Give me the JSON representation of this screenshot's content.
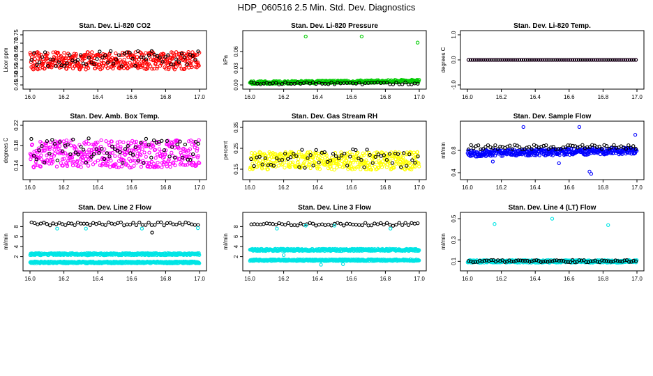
{
  "figure": {
    "title": "HDP_060516  2.5 Min. Std. Dev. Diagnostics"
  },
  "chart_data": [
    {
      "type": "scatter",
      "title": "Stan. Dev. Li-820 CO2",
      "ylabel": "Licor ppm",
      "xlim": [
        16.0,
        17.0
      ],
      "ylim": [
        0.45,
        0.75
      ],
      "xticks": [
        "16.0",
        "16.2",
        "16.4",
        "16.6",
        "16.8",
        "17.0"
      ],
      "yticks": [
        "0.45",
        "0.50",
        "0.55",
        "0.60",
        "0.65",
        "0.70",
        "0.75"
      ],
      "series": [
        {
          "name": "primary",
          "color": "#ff0000",
          "n": 420,
          "base": 0.595,
          "spread": 0.105,
          "noise": "band",
          "seed": 11
        },
        {
          "name": "black",
          "color": "#000000",
          "n": 62,
          "base": 0.61,
          "spread": 0.1,
          "noise": "band",
          "seed": 12
        }
      ]
    },
    {
      "type": "scatter",
      "title": "Stan. Dev. Li-820 Pressure",
      "ylabel": "kPa",
      "xlim": [
        16.0,
        17.0
      ],
      "ylim": [
        0.0,
        0.09
      ],
      "xticks": [
        "16.0",
        "16.2",
        "16.4",
        "16.6",
        "16.8",
        "17.0"
      ],
      "yticks": [
        "0.00",
        "0.03",
        "0.06"
      ],
      "series": [
        {
          "name": "primary",
          "color": "#00cc00",
          "n": 420,
          "base": 0.0015,
          "spread": 0.005,
          "noise": "low",
          "seed": 21,
          "trend": 0.003
        },
        {
          "name": "black",
          "color": "#000000",
          "n": 55,
          "base": 0.001,
          "spread": 0.004,
          "noise": "low",
          "seed": 22
        }
      ],
      "outliers": [
        {
          "color": "#00cc00",
          "x": 16.33,
          "y": 0.087
        },
        {
          "color": "#00cc00",
          "x": 16.66,
          "y": 0.087
        },
        {
          "color": "#00cc00",
          "x": 16.99,
          "y": 0.076
        }
      ]
    },
    {
      "type": "scatter",
      "title": "Stan. Dev. Li-820 Temp.",
      "ylabel": "degrees C",
      "xlim": [
        16.0,
        17.0
      ],
      "ylim": [
        -1.0,
        1.0
      ],
      "xticks": [
        "16.0",
        "16.2",
        "16.4",
        "16.6",
        "16.8",
        "17.0"
      ],
      "yticks": [
        "-1.0",
        "0.0",
        "1.0"
      ],
      "series": [
        {
          "name": "primary",
          "color": "#ff00ff",
          "n": 80,
          "base": 0.0,
          "spread": 0.0,
          "noise": "flat",
          "seed": 31
        },
        {
          "name": "black",
          "color": "#000000",
          "n": 80,
          "base": 0.0,
          "spread": 0.0,
          "noise": "flat",
          "seed": 32
        }
      ]
    },
    {
      "type": "scatter",
      "title": "Stan. Dev. Amb. Box Temp.",
      "ylabel": "degrees C",
      "xlim": [
        16.0,
        17.0
      ],
      "ylim": [
        0.12,
        0.22
      ],
      "xticks": [
        "16.0",
        "16.2",
        "16.4",
        "16.6",
        "16.8",
        "17.0"
      ],
      "yticks": [
        "0.14",
        "0.18",
        "0.22"
      ],
      "series": [
        {
          "name": "primary",
          "color": "#ff00ff",
          "n": 420,
          "base": 0.163,
          "spread": 0.055,
          "noise": "band",
          "seed": 41
        },
        {
          "name": "black",
          "color": "#000000",
          "n": 65,
          "base": 0.17,
          "spread": 0.05,
          "noise": "band",
          "seed": 42
        }
      ]
    },
    {
      "type": "scatter",
      "title": "Stan. Dev. Gas Stream RH",
      "ylabel": "percent",
      "xlim": [
        16.0,
        17.0
      ],
      "ylim": [
        0.12,
        0.36
      ],
      "xticks": [
        "16.0",
        "16.2",
        "16.4",
        "16.6",
        "16.8",
        "17.0"
      ],
      "yticks": [
        "0.15",
        "0.25",
        "0.35"
      ],
      "series": [
        {
          "name": "primary",
          "color": "#ffff00",
          "n": 420,
          "base": 0.19,
          "spread": 0.085,
          "noise": "band",
          "seed": 51
        },
        {
          "name": "black",
          "color": "#000000",
          "n": 60,
          "base": 0.2,
          "spread": 0.09,
          "noise": "band",
          "seed": 52
        }
      ]
    },
    {
      "type": "scatter",
      "title": "Stan. Dev. Sample Flow",
      "ylabel": "ml/min",
      "xlim": [
        16.0,
        17.0
      ],
      "ylim": [
        0.35,
        1.25
      ],
      "xticks": [
        "16.0",
        "16.2",
        "16.4",
        "16.6",
        "16.8",
        "17.0"
      ],
      "yticks": [
        "0.4",
        "0.8"
      ],
      "series": [
        {
          "name": "primary",
          "color": "#0000ff",
          "n": 420,
          "base": 0.77,
          "spread": 0.12,
          "noise": "band",
          "seed": 61,
          "trend": 0.05
        },
        {
          "name": "black",
          "color": "#000000",
          "n": 70,
          "base": 0.86,
          "spread": 0.08,
          "noise": "band",
          "seed": 62
        }
      ],
      "outliers": [
        {
          "color": "#0000ff",
          "x": 16.33,
          "y": 1.22
        },
        {
          "color": "#0000ff",
          "x": 16.66,
          "y": 1.22
        },
        {
          "color": "#0000ff",
          "x": 16.99,
          "y": 1.08
        },
        {
          "color": "#0000ff",
          "x": 16.72,
          "y": 0.42
        },
        {
          "color": "#0000ff",
          "x": 16.73,
          "y": 0.38
        },
        {
          "color": "#0000ff",
          "x": 16.15,
          "y": 0.6
        },
        {
          "color": "#0000ff",
          "x": 16.54,
          "y": 0.57
        }
      ]
    },
    {
      "type": "scatter",
      "title": "Stan. Dev. Line 2 Flow",
      "ylabel": "ml/min",
      "xlim": [
        16.0,
        17.0
      ],
      "ylim": [
        0.0,
        10.0
      ],
      "xticks": [
        "16.0",
        "16.2",
        "16.4",
        "16.6",
        "16.8",
        "17.0"
      ],
      "yticks": [
        "2",
        "4",
        "6",
        "8"
      ],
      "series": [
        {
          "name": "cyan upper",
          "color": "#00e5e5",
          "n": 420,
          "base": 2.5,
          "spread": 0.45,
          "noise": "band",
          "seed": 71
        },
        {
          "name": "cyan lower",
          "color": "#00e5e5",
          "n": 420,
          "base": 0.85,
          "spread": 0.4,
          "noise": "band",
          "seed": 72
        },
        {
          "name": "black",
          "color": "#000000",
          "n": 55,
          "base": 8.55,
          "spread": 0.6,
          "noise": "band",
          "seed": 73
        }
      ],
      "outliers": [
        {
          "color": "#00e5e5",
          "x": 16.16,
          "y": 7.6
        },
        {
          "color": "#00e5e5",
          "x": 16.33,
          "y": 7.6
        },
        {
          "color": "#00e5e5",
          "x": 16.66,
          "y": 7.6
        },
        {
          "color": "#00e5e5",
          "x": 16.99,
          "y": 7.7
        },
        {
          "color": "#000000",
          "x": 16.72,
          "y": 6.8
        }
      ]
    },
    {
      "type": "scatter",
      "title": "Stan. Dev. Line 3 Flow",
      "ylabel": "ml/min",
      "xlim": [
        16.0,
        17.0
      ],
      "ylim": [
        0.0,
        10.0
      ],
      "xticks": [
        "16.0",
        "16.2",
        "16.4",
        "16.6",
        "16.8",
        "17.0"
      ],
      "yticks": [
        "2",
        "4",
        "6",
        "8"
      ],
      "series": [
        {
          "name": "cyan upper",
          "color": "#00e5e5",
          "n": 420,
          "base": 3.35,
          "spread": 0.45,
          "noise": "band",
          "seed": 81
        },
        {
          "name": "cyan lower",
          "color": "#00e5e5",
          "n": 420,
          "base": 1.3,
          "spread": 0.35,
          "noise": "band",
          "seed": 82
        },
        {
          "name": "black",
          "color": "#000000",
          "n": 55,
          "base": 8.45,
          "spread": 0.6,
          "noise": "band",
          "seed": 83
        }
      ],
      "outliers": [
        {
          "color": "#00e5e5",
          "x": 16.16,
          "y": 7.6
        },
        {
          "color": "#00e5e5",
          "x": 16.33,
          "y": 8.2
        },
        {
          "color": "#00e5e5",
          "x": 16.5,
          "y": 8.2
        },
        {
          "color": "#00e5e5",
          "x": 16.83,
          "y": 7.6
        },
        {
          "color": "#00e5e5",
          "x": 16.2,
          "y": 2.3
        },
        {
          "color": "#00e5e5",
          "x": 16.42,
          "y": 0.4
        },
        {
          "color": "#00e5e5",
          "x": 16.55,
          "y": 0.5
        }
      ]
    },
    {
      "type": "scatter",
      "title": "Stan. Dev. Line 4 (LT) Flow",
      "ylabel": "ml/min",
      "xlim": [
        16.0,
        17.0
      ],
      "ylim": [
        0.05,
        0.52
      ],
      "xticks": [
        "16.0",
        "16.2",
        "16.4",
        "16.6",
        "16.8",
        "17.0"
      ],
      "yticks": [
        "0.1",
        "0.3",
        "0.5"
      ],
      "series": [
        {
          "name": "primary",
          "color": "#00e5e5",
          "n": 420,
          "base": 0.1,
          "spread": 0.025,
          "noise": "band",
          "seed": 91
        },
        {
          "name": "black",
          "color": "#000000",
          "n": 75,
          "base": 0.102,
          "spread": 0.022,
          "noise": "band",
          "seed": 92
        }
      ],
      "outliers": [
        {
          "color": "#00e5e5",
          "x": 16.16,
          "y": 0.45
        },
        {
          "color": "#00e5e5",
          "x": 16.5,
          "y": 0.5
        },
        {
          "color": "#00e5e5",
          "x": 16.83,
          "y": 0.44
        }
      ]
    }
  ]
}
